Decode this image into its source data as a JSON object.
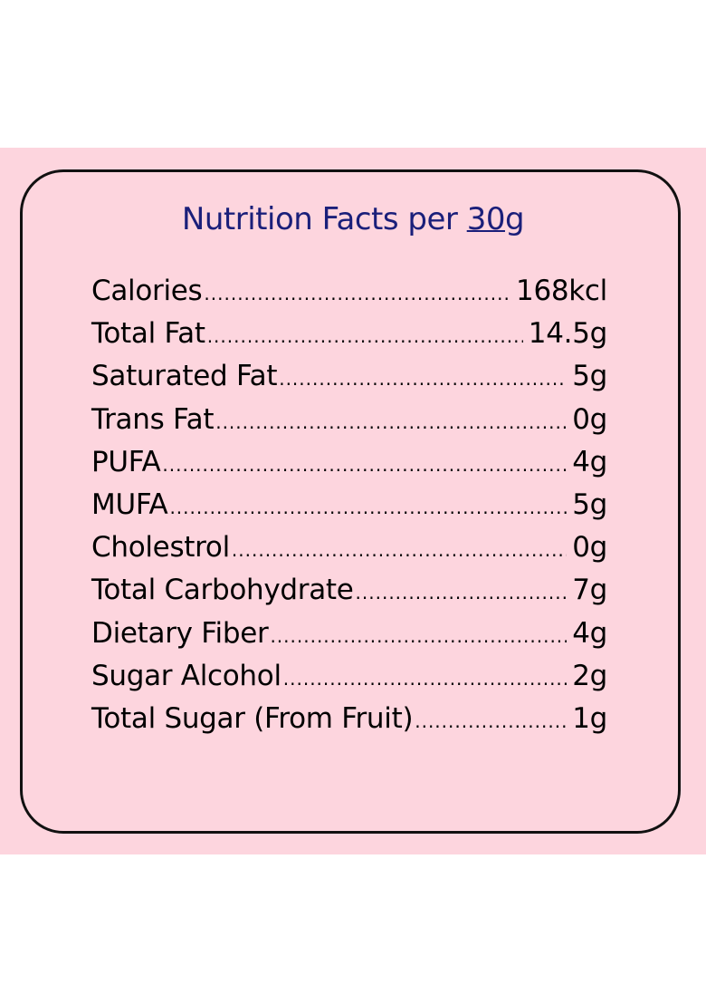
{
  "title": {
    "prefix": "Nutrition Facts per ",
    "amount": "30",
    "unit": "g"
  },
  "rows": [
    {
      "label": "Calories",
      "value": "168kcl"
    },
    {
      "label": "Total Fat",
      "value": "14.5g"
    },
    {
      "label": "Saturated Fat",
      "value": "5g"
    },
    {
      "label": "Trans Fat",
      "value": "0g"
    },
    {
      "label": "PUFA",
      "value": "4g"
    },
    {
      "label": "MUFA",
      "value": "5g"
    },
    {
      "label": "Cholestrol",
      "value": "0g"
    },
    {
      "label": "Total Carbohydrate",
      "value": "7g"
    },
    {
      "label": "Dietary Fiber",
      "value": "4g"
    },
    {
      "label": "Sugar Alcohol",
      "value": "2g"
    },
    {
      "label": "Total Sugar (From Fruit)",
      "value": "1g"
    }
  ],
  "colors": {
    "background": "#fdd5de",
    "title": "#1a1f7a"
  }
}
